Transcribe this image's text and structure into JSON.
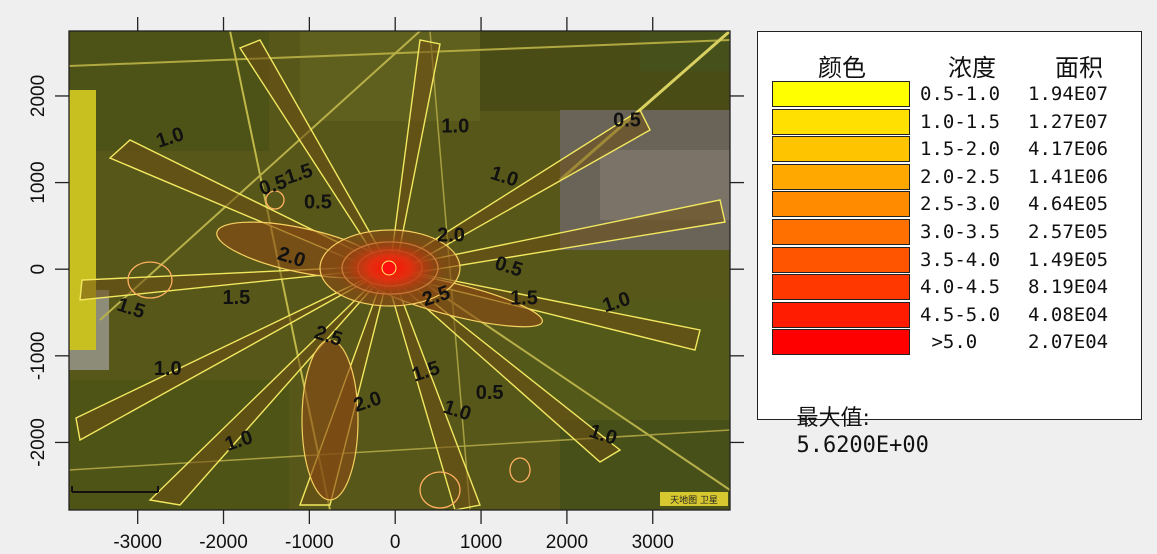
{
  "chart_data": {
    "type": "contour",
    "x_ticks": [
      -3000,
      -2000,
      -1000,
      0,
      1000,
      2000,
      3000
    ],
    "y_ticks": [
      2000,
      1000,
      0,
      -1000,
      -2000
    ],
    "xlim": [
      -3800,
      3900
    ],
    "ylim": [
      -2780,
      2750
    ],
    "max_location": [
      -60,
      0
    ],
    "contour_labels": [
      {
        "text": "1.0",
        "x": -2600,
        "y": 1450
      },
      {
        "text": "1.0",
        "x": 700,
        "y": 1580
      },
      {
        "text": "1.0",
        "x": 1250,
        "y": 1000
      },
      {
        "text": "1.0",
        "x": 2600,
        "y": -450
      },
      {
        "text": "1.0",
        "x": -2650,
        "y": -1220
      },
      {
        "text": "1.0",
        "x": 2400,
        "y": -1980
      },
      {
        "text": "1.0",
        "x": -1800,
        "y": -2050
      },
      {
        "text": "0.5",
        "x": 2700,
        "y": 1650
      },
      {
        "text": "0.5",
        "x": 1300,
        "y": -40
      },
      {
        "text": "0.5",
        "x": -1400,
        "y": 900
      },
      {
        "text": "1.5",
        "x": -1850,
        "y": -400
      },
      {
        "text": "1.5",
        "x": -3100,
        "y": -520
      },
      {
        "text": "1.5",
        "x": -1100,
        "y": 1030
      },
      {
        "text": "1.5",
        "x": 1500,
        "y": -410
      },
      {
        "text": "2.0",
        "x": -1230,
        "y": 70
      },
      {
        "text": "2.0",
        "x": -300,
        "y": -1600
      },
      {
        "text": "2.0",
        "x": 650,
        "y": 320
      },
      {
        "text": "2.5",
        "x": -800,
        "y": -840
      },
      {
        "text": "2.5",
        "x": 500,
        "y": -380
      },
      {
        "text": "0.5",
        "x": -900,
        "y": 700
      },
      {
        "text": "1.0",
        "x": 700,
        "y": -1700
      },
      {
        "text": "1.5",
        "x": 380,
        "y": -1250
      },
      {
        "text": "0.5",
        "x": 1100,
        "y": -1500
      }
    ],
    "legend": {
      "headers": [
        "颜色",
        "浓度",
        "面积"
      ],
      "rows": [
        {
          "range": "0.5-1.0",
          "area": "1.94E07",
          "color": "#ffff00"
        },
        {
          "range": "1.0-1.5",
          "area": "1.27E07",
          "color": "#ffe000"
        },
        {
          "range": "1.5-2.0",
          "area": "4.17E06",
          "color": "#ffc400"
        },
        {
          "range": "2.0-2.5",
          "area": "1.41E06",
          "color": "#ffa800"
        },
        {
          "range": "2.5-3.0",
          "area": "4.64E05",
          "color": "#ff8c00"
        },
        {
          "range": "3.0-3.5",
          "area": "2.57E05",
          "color": "#ff7000"
        },
        {
          "range": "3.5-4.0",
          "area": "1.49E05",
          "color": "#ff5400"
        },
        {
          "range": "4.0-4.5",
          "area": "8.19E04",
          "color": "#ff3800"
        },
        {
          "range": "4.5-5.0",
          "area": "4.08E04",
          "color": "#ff1c00"
        },
        {
          "range": " >5.0",
          "area": "2.07E04",
          "color": "#ff0000"
        }
      ],
      "max_label": "最大值:",
      "max_value": "5.6200E+00"
    }
  },
  "map_overlay": {
    "scale_text": "",
    "corner_text": "天地图 卫星"
  },
  "colors": {
    "map_base": "#5a5818",
    "map_dark": "#3c3a12",
    "road": "#b8b040",
    "contour_line": "#f2e860",
    "red_core": "#e01010"
  }
}
